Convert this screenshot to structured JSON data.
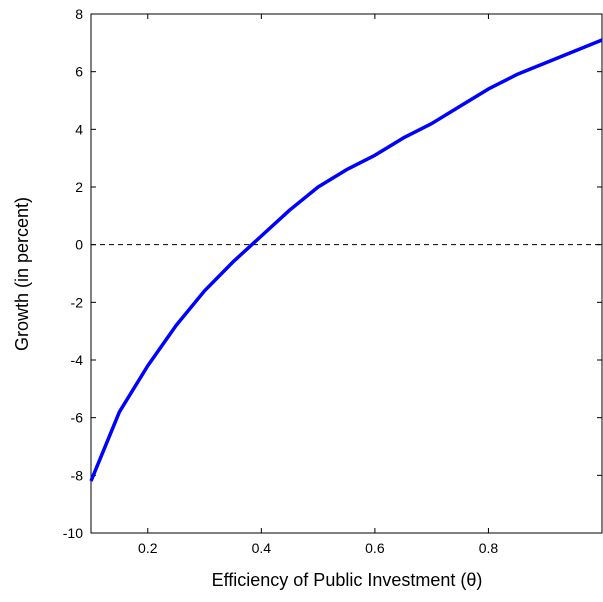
{
  "chart_data": {
    "type": "line",
    "xlabel": "Efficiency of Public Investment (θ)",
    "ylabel": "Growth (in percent)",
    "x": [
      0.1,
      0.15,
      0.2,
      0.25,
      0.3,
      0.35,
      0.4,
      0.45,
      0.5,
      0.55,
      0.6,
      0.65,
      0.7,
      0.75,
      0.8,
      0.85,
      0.9,
      0.95,
      1.0
    ],
    "series": [
      {
        "color": "#0000ff",
        "values": [
          -8.2,
          -5.8,
          -4.2,
          -2.8,
          -1.6,
          -0.6,
          0.3,
          1.2,
          2.0,
          2.6,
          3.1,
          3.7,
          4.2,
          4.8,
          5.4,
          5.9,
          6.3,
          6.7,
          7.1
        ]
      }
    ],
    "xlim": [
      0.1,
      1.0
    ],
    "ylim": [
      -10,
      8
    ],
    "xticks": [
      0.2,
      0.4,
      0.6,
      0.8
    ],
    "yticks": [
      -10,
      -8,
      -6,
      -4,
      -2,
      0,
      2,
      4,
      6,
      8
    ],
    "reference_line": 0,
    "grid": false
  }
}
